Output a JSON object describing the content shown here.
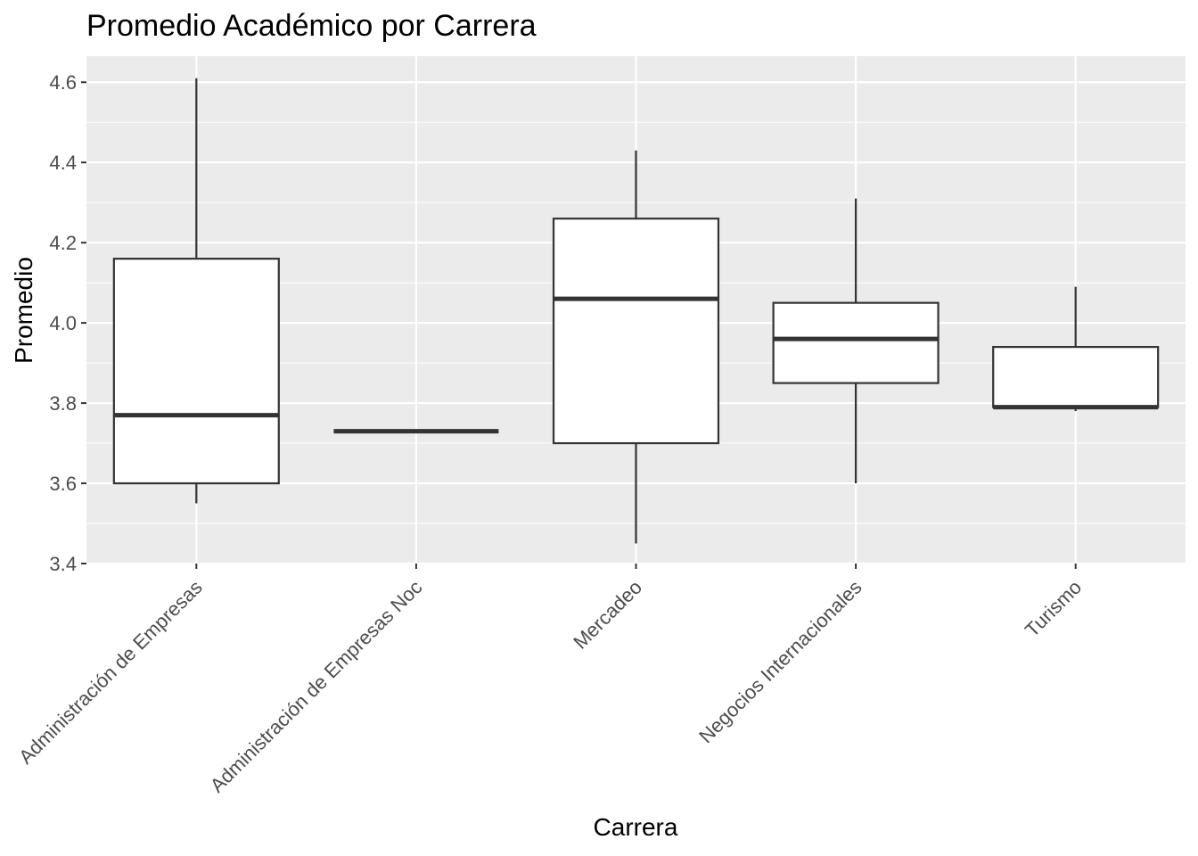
{
  "chart_data": {
    "type": "boxplot",
    "title": "Promedio Académico por Carrera",
    "xlabel": "Carrera",
    "ylabel": "Promedio",
    "ylim": [
      3.4,
      4.665
    ],
    "yticks": [
      3.4,
      3.6,
      3.8,
      4.0,
      4.2,
      4.4,
      4.6
    ],
    "ytick_labels": [
      "3.4",
      "3.6",
      "3.8",
      "4.0",
      "4.2",
      "4.4",
      "4.6"
    ],
    "grid": true,
    "legend": "none",
    "categories": [
      "Administración de Empresas",
      "Administración de Empresas Noc",
      "Mercadeo",
      "Negocios Internacionales",
      "Turismo"
    ],
    "boxes": [
      {
        "category": "Administración de Empresas",
        "min": 3.55,
        "q1": 3.6,
        "median": 3.77,
        "q3": 4.16,
        "max": 4.61
      },
      {
        "category": "Administración de Empresas Noc",
        "min": 3.73,
        "q1": 3.73,
        "median": 3.73,
        "q3": 3.73,
        "max": 3.73
      },
      {
        "category": "Mercadeo",
        "min": 3.45,
        "q1": 3.7,
        "median": 4.06,
        "q3": 4.26,
        "max": 4.43
      },
      {
        "category": "Negocios Internacionales",
        "min": 3.6,
        "q1": 3.85,
        "median": 3.96,
        "q3": 4.05,
        "max": 4.31
      },
      {
        "category": "Turismo",
        "min": 3.78,
        "q1": 3.79,
        "median": 3.79,
        "q3": 3.94,
        "max": 4.09
      }
    ],
    "colors": {
      "panel": "#ebebeb",
      "grid": "#ffffff",
      "box_fill": "#ffffff",
      "box_stroke": "#333333",
      "tick": "#333333"
    }
  }
}
